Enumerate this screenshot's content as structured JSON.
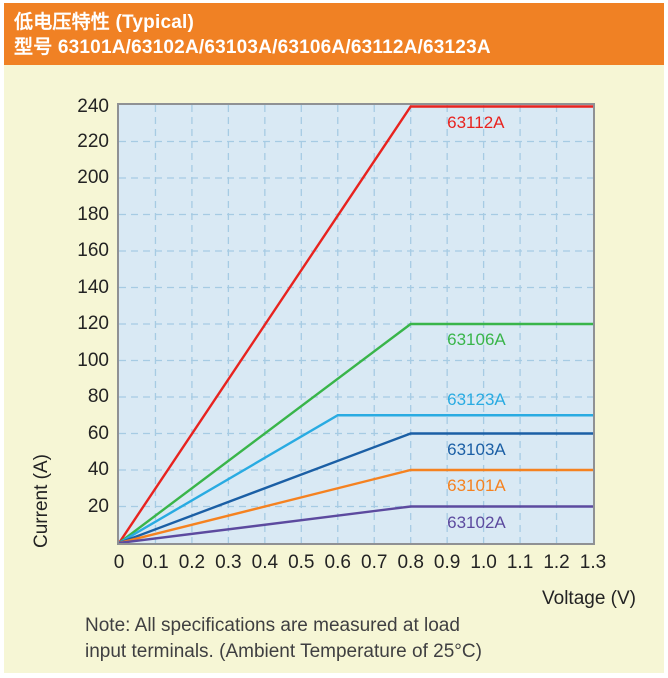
{
  "header": {
    "title_line1": "低电压特性 (Typical)",
    "title_line2": "型号 63101A/63102A/63103A/63106A/63112A/63123A"
  },
  "axes": {
    "y_title": "Current (A)",
    "x_title": "Voltage (V)"
  },
  "note": {
    "line1": "Note: All specifications are measured at load",
    "line2": "input terminals. (Ambient Temperature of 25°C)"
  },
  "colors": {
    "header_bg": "#f08124",
    "body_bg": "#f6f6d5",
    "plot_bg": "#d9e9f4",
    "grid": "#a6cbe3",
    "plot_border": "#8f9194",
    "tick_text": "#232323",
    "note_text": "#3f3f41"
  },
  "chart_data": {
    "type": "line",
    "title": "低电压特性 (Typical) 型号 63101A/63102A/63103A/63106A/63112A/63123A",
    "xlabel": "Voltage (V)",
    "ylabel": "Current (A)",
    "xlim": [
      0,
      1.3
    ],
    "ylim": [
      0,
      240
    ],
    "grid": "dashed",
    "legend_position": "inline-labels-right-of-curves",
    "x_ticks": [
      {
        "v": 0.0,
        "label": "0"
      },
      {
        "v": 0.1,
        "label": "0.1"
      },
      {
        "v": 0.2,
        "label": "0.2"
      },
      {
        "v": 0.3,
        "label": "0.3"
      },
      {
        "v": 0.4,
        "label": "0.4"
      },
      {
        "v": 0.5,
        "label": "0.5"
      },
      {
        "v": 0.6,
        "label": "0.6"
      },
      {
        "v": 0.7,
        "label": "0.7"
      },
      {
        "v": 0.8,
        "label": "0.8"
      },
      {
        "v": 0.9,
        "label": "0.9"
      },
      {
        "v": 1.0,
        "label": "1.0"
      },
      {
        "v": 1.1,
        "label": "1.1"
      },
      {
        "v": 1.2,
        "label": "1.2"
      },
      {
        "v": 1.3,
        "label": "1.3"
      }
    ],
    "y_ticks": [
      {
        "v": 20,
        "label": "20"
      },
      {
        "v": 40,
        "label": "40"
      },
      {
        "v": 60,
        "label": "60"
      },
      {
        "v": 80,
        "label": "80"
      },
      {
        "v": 100,
        "label": "100"
      },
      {
        "v": 120,
        "label": "120"
      },
      {
        "v": 140,
        "label": "140"
      },
      {
        "v": 160,
        "label": "160"
      },
      {
        "v": 180,
        "label": "180"
      },
      {
        "v": 200,
        "label": "200"
      },
      {
        "v": 220,
        "label": "220"
      },
      {
        "v": 240,
        "label": "240"
      }
    ],
    "x_grid": [
      0.1,
      0.2,
      0.3,
      0.4,
      0.5,
      0.6,
      0.7,
      0.8,
      0.9,
      1.0,
      1.1,
      1.2
    ],
    "y_grid": [
      20,
      40,
      60,
      80,
      100,
      120,
      140,
      160,
      180,
      200,
      220
    ],
    "label_x": 0.9,
    "series": [
      {
        "name": "63112A",
        "color": "#e8231f",
        "points": [
          [
            0,
            0
          ],
          [
            0.8,
            240
          ],
          [
            1.3,
            240
          ]
        ],
        "label_side": "below"
      },
      {
        "name": "63106A",
        "color": "#39b54a",
        "points": [
          [
            0,
            0
          ],
          [
            0.8,
            120
          ],
          [
            1.3,
            120
          ]
        ],
        "label_side": "below"
      },
      {
        "name": "63123A",
        "color": "#29abe2",
        "points": [
          [
            0,
            0
          ],
          [
            0.6,
            70
          ],
          [
            1.3,
            70
          ]
        ],
        "label_side": "above"
      },
      {
        "name": "63103A",
        "color": "#1b5fa5",
        "points": [
          [
            0,
            0
          ],
          [
            0.8,
            60
          ],
          [
            1.3,
            60
          ]
        ],
        "label_side": "below"
      },
      {
        "name": "63101A",
        "color": "#f58220",
        "points": [
          [
            0,
            0
          ],
          [
            0.8,
            40
          ],
          [
            1.3,
            40
          ]
        ],
        "label_side": "below"
      },
      {
        "name": "63102A",
        "color": "#5c4a9f",
        "points": [
          [
            0,
            0
          ],
          [
            0.8,
            20
          ],
          [
            1.3,
            20
          ]
        ],
        "label_side": "below"
      }
    ]
  }
}
